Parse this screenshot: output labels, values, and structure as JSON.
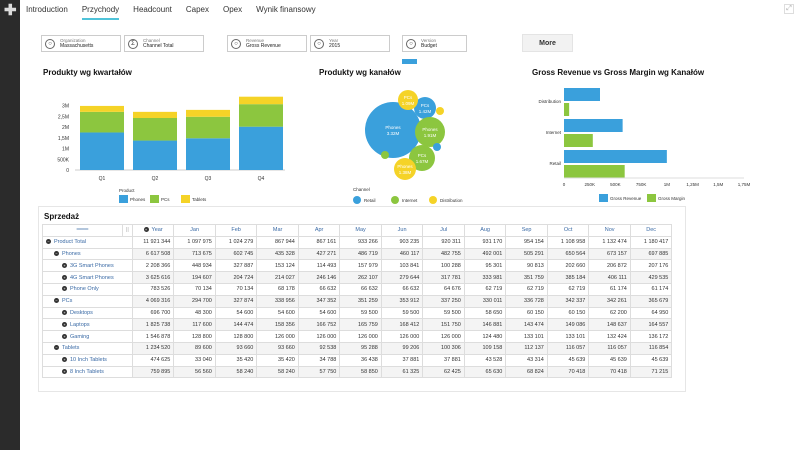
{
  "nav": {
    "tabs": [
      "Introduction",
      "Przychody",
      "Headcount",
      "Capex",
      "Opex",
      "Wynik finansowy"
    ],
    "active": 1
  },
  "filters": [
    {
      "label": "Organization",
      "value": "Massachusetts",
      "icon": "circle-icon"
    },
    {
      "label": "Channel",
      "value": "Channel Total",
      "icon": "sigma-icon"
    },
    {
      "label": "Revenue",
      "value": "Gross Revenue",
      "icon": "circle-icon"
    },
    {
      "label": "Year",
      "value": "2015",
      "icon": "circle-icon"
    },
    {
      "label": "Version",
      "value": "Budget",
      "icon": "circle-icon"
    }
  ],
  "more_label": "More",
  "colors": {
    "phones": "#3aa0dc",
    "pcs": "#8cc63f",
    "tablets": "#f5d327",
    "accent": "#4fc3d9"
  },
  "chart_data": [
    {
      "type": "bar",
      "stacked": true,
      "title": "Produkty wg kwartałów",
      "categories": [
        "Q1",
        "Q2",
        "Q3",
        "Q4"
      ],
      "yticks": [
        "0",
        "500K",
        "1M",
        "1,5M",
        "2M",
        "2,5M",
        "3M"
      ],
      "ylim": [
        0,
        3500000
      ],
      "legend_title": "Product",
      "series": [
        {
          "name": "Phones",
          "values": [
            1751748,
            1374107,
            1480047,
            2021606
          ]
        },
        {
          "name": "PCs",
          "values": [
            961530,
            1052523,
            1003989,
            1050277
          ]
        },
        {
          "name": "Tablets",
          "values": [
            276920,
            287032,
            321621,
            348968
          ]
        }
      ]
    },
    {
      "type": "bubble",
      "title": "Produkty wg kanałów",
      "legend_title": "Channel",
      "legend": [
        "Retail",
        "Internet",
        "Distribution"
      ],
      "bubbles": [
        {
          "label": "Phones",
          "value": "3.32M",
          "channel": "Retail"
        },
        {
          "label": "PCs",
          "value": "1.42M",
          "channel": "Retail"
        },
        {
          "label": "PCs",
          "value": "1.09M",
          "channel": "Distribution"
        },
        {
          "label": "Phones",
          "value": "1.91M",
          "channel": "Internet"
        },
        {
          "label": "PCs",
          "value": "1.67M",
          "channel": "Internet"
        },
        {
          "label": "Phones",
          "value": "1.38M",
          "channel": "Distribution"
        }
      ]
    },
    {
      "type": "bar",
      "orientation": "horizontal",
      "title": "Gross Revenue vs Gross Margin wg Kanałów",
      "categories": [
        "Distribution",
        "Internet",
        "Retail"
      ],
      "xticks": [
        "0",
        "250K",
        "500K",
        "750K",
        "1M",
        "1,25M",
        "1,5M",
        "1,75M"
      ],
      "xlim": [
        0,
        1750000
      ],
      "series": [
        {
          "name": "Gross Revenue",
          "values": [
            350000,
            570000,
            1000000
          ]
        },
        {
          "name": "Gross Margin",
          "values": [
            50000,
            280000,
            590000
          ]
        }
      ]
    }
  ],
  "table": {
    "title": "Sprzedaż",
    "columns": [
      "Year",
      "Jan",
      "Feb",
      "Mar",
      "Apr",
      "May",
      "Jun",
      "Jul",
      "Aug",
      "Sep",
      "Oct",
      "Nov",
      "Dec"
    ],
    "rows": [
      {
        "label": "Product Total",
        "level": 0,
        "values": [
          "11 921 344",
          "1 097 975",
          "1 024 279",
          "867 944",
          "867 161",
          "933 266",
          "903 235",
          "920 311",
          "931 170",
          "954 154",
          "1 108 958",
          "1 132 474",
          "1 180 417"
        ]
      },
      {
        "label": "Phones",
        "level": 1,
        "values": [
          "6 617 508",
          "713 675",
          "602 745",
          "435 328",
          "427 271",
          "486 719",
          "460 117",
          "482 755",
          "492 001",
          "505 291",
          "650 564",
          "673 157",
          "697 885"
        ]
      },
      {
        "label": "3G Smart Phones",
        "level": 2,
        "values": [
          "2 208 366",
          "448 934",
          "327 887",
          "153 124",
          "114 493",
          "157 979",
          "103 841",
          "100 288",
          "95 301",
          "90 813",
          "202 660",
          "206 872",
          "207 176"
        ]
      },
      {
        "label": "4G Smart Phones",
        "level": 2,
        "values": [
          "3 625 616",
          "194 607",
          "204 724",
          "214 027",
          "246 146",
          "262 107",
          "279 644",
          "317 781",
          "333 981",
          "351 759",
          "385 184",
          "406 111",
          "429 535"
        ]
      },
      {
        "label": "Phone Only",
        "level": 2,
        "values": [
          "783 526",
          "70 134",
          "70 134",
          "68 178",
          "66 632",
          "66 632",
          "66 632",
          "64 676",
          "62 719",
          "62 719",
          "62 719",
          "61 174",
          "61 174"
        ]
      },
      {
        "label": "PCs",
        "level": 1,
        "values": [
          "4 069 316",
          "294 700",
          "327 874",
          "338 956",
          "347 352",
          "351 259",
          "353 912",
          "337 250",
          "330 011",
          "336 728",
          "342 337",
          "342 261",
          "365 679"
        ]
      },
      {
        "label": "Desktops",
        "level": 2,
        "values": [
          "696 700",
          "48 300",
          "54 600",
          "54 600",
          "54 600",
          "59 500",
          "59 500",
          "59 500",
          "58 650",
          "60 150",
          "60 150",
          "62 200",
          "64 950"
        ]
      },
      {
        "label": "Laptops",
        "level": 2,
        "values": [
          "1 825 738",
          "117 600",
          "144 474",
          "158 356",
          "166 752",
          "165 759",
          "168 412",
          "151 750",
          "146 881",
          "143 474",
          "149 086",
          "148 637",
          "164 557"
        ]
      },
      {
        "label": "Gaming",
        "level": 2,
        "values": [
          "1 546 878",
          "128 800",
          "128 800",
          "126 000",
          "126 000",
          "126 000",
          "126 000",
          "126 000",
          "124 480",
          "133 101",
          "133 101",
          "132 424",
          "136 172"
        ]
      },
      {
        "label": "Tablets",
        "level": 1,
        "values": [
          "1 234 520",
          "89 600",
          "93 660",
          "93 660",
          "92 538",
          "95 288",
          "99 206",
          "100 306",
          "109 158",
          "112 137",
          "116 057",
          "116 057",
          "116 854"
        ]
      },
      {
        "label": "10 Inch Tablets",
        "level": 2,
        "values": [
          "474 625",
          "33 040",
          "35 420",
          "35 420",
          "34 788",
          "36 438",
          "37 881",
          "37 881",
          "43 528",
          "43 314",
          "45 639",
          "45 639",
          "45 639"
        ]
      },
      {
        "label": "8 Inch Tablets",
        "level": 2,
        "values": [
          "759 895",
          "56 560",
          "58 240",
          "58 240",
          "57 750",
          "58 850",
          "61 325",
          "62 425",
          "65 630",
          "68 824",
          "70 418",
          "70 418",
          "71 215"
        ]
      }
    ]
  }
}
